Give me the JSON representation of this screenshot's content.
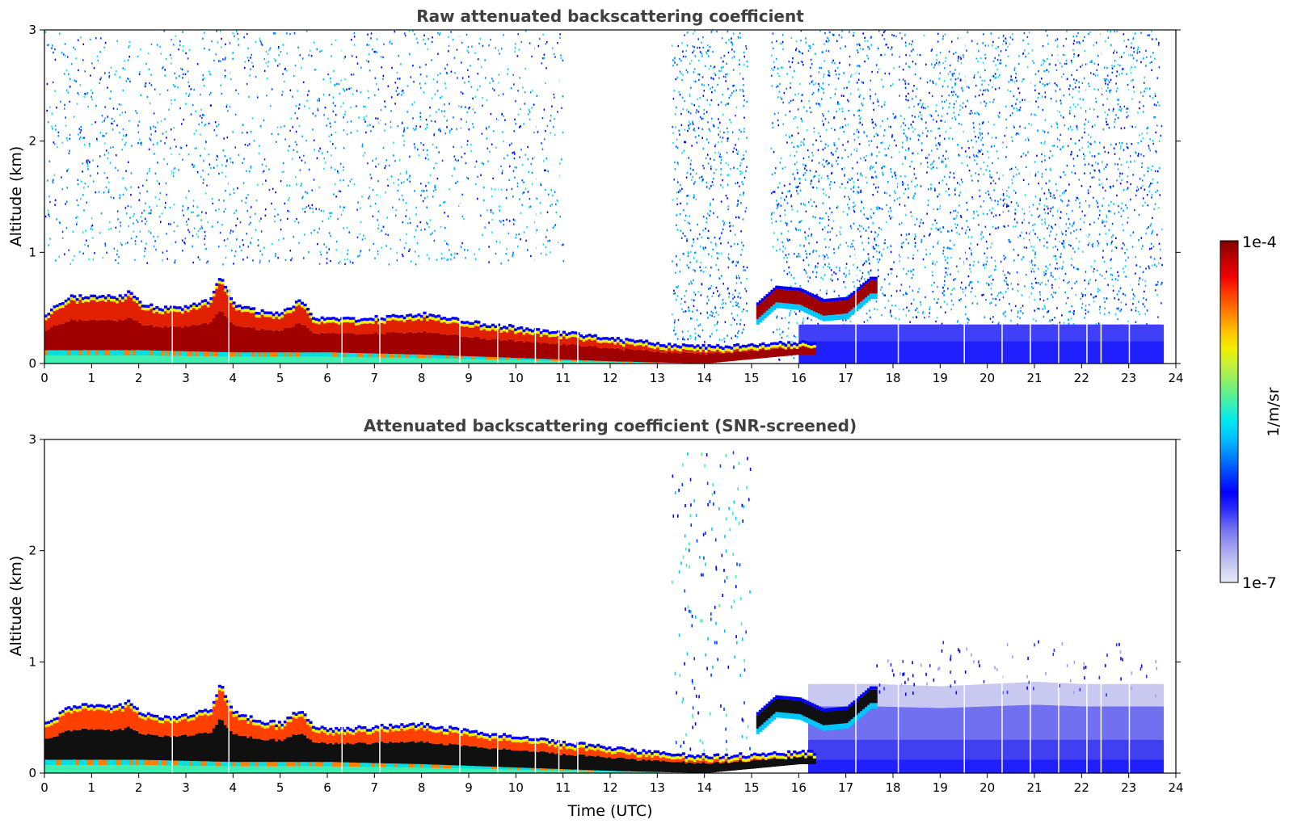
{
  "chart_data": [
    {
      "type": "heatmap",
      "title": "Raw attenuated backscattering coefficient",
      "xlabel": "",
      "ylabel": "Altitude (km)",
      "xlim": [
        0,
        24
      ],
      "ylim": [
        0,
        3
      ],
      "xticks": [
        "0",
        "1",
        "2",
        "3",
        "4",
        "5",
        "6",
        "7",
        "8",
        "9",
        "10",
        "11",
        "12",
        "13",
        "14",
        "15",
        "16",
        "17",
        "18",
        "19",
        "20",
        "21",
        "22",
        "23",
        "24"
      ],
      "yticks": [
        "0",
        "1",
        "2",
        "3"
      ],
      "layer_top_km": [
        [
          0,
          0.45
        ],
        [
          0.5,
          0.6
        ],
        [
          1,
          0.62
        ],
        [
          1.5,
          0.6
        ],
        [
          1.8,
          0.65
        ],
        [
          2,
          0.55
        ],
        [
          2.5,
          0.5
        ],
        [
          3,
          0.52
        ],
        [
          3.5,
          0.58
        ],
        [
          3.7,
          0.8
        ],
        [
          4,
          0.55
        ],
        [
          4.5,
          0.48
        ],
        [
          5,
          0.45
        ],
        [
          5.4,
          0.58
        ],
        [
          5.7,
          0.42
        ],
        [
          6,
          0.4
        ],
        [
          7,
          0.42
        ],
        [
          8,
          0.45
        ],
        [
          9,
          0.38
        ],
        [
          10,
          0.33
        ],
        [
          11,
          0.28
        ],
        [
          12,
          0.23
        ],
        [
          13,
          0.19
        ],
        [
          13.5,
          0.17
        ],
        [
          14,
          0.16
        ],
        [
          15,
          0.17
        ],
        [
          16,
          0.2
        ]
      ],
      "layer_base_km": [
        [
          0,
          0.12
        ],
        [
          2,
          0.12
        ],
        [
          4,
          0.1
        ],
        [
          6,
          0.1
        ],
        [
          8,
          0.08
        ],
        [
          10,
          0.05
        ],
        [
          12,
          0.02
        ],
        [
          14,
          0.0
        ],
        [
          16,
          0.08
        ]
      ],
      "elevated_layer_km": [
        [
          15.1,
          0.55
        ],
        [
          15.5,
          0.7
        ],
        [
          16,
          0.68
        ],
        [
          16.5,
          0.58
        ],
        [
          17,
          0.6
        ],
        [
          17.5,
          0.78
        ]
      ],
      "noise_zones": [
        {
          "x0": 0,
          "x1": 11,
          "y_min": 0.9,
          "y_max": 3,
          "level": "medium"
        },
        {
          "x0": 13.3,
          "x1": 14.9,
          "y_min": 0.2,
          "y_max": 3,
          "level": "dense"
        },
        {
          "x0": 15.4,
          "x1": 23.7,
          "y_min": 0.0,
          "y_max": 3,
          "level": "dense"
        }
      ]
    },
    {
      "type": "heatmap",
      "title": "Attenuated backscattering coefficient (SNR-screened)",
      "xlabel": "Time (UTC)",
      "ylabel": "Altitude (km)",
      "xlim": [
        0,
        24
      ],
      "ylim": [
        0,
        3
      ],
      "xticks": [
        "0",
        "1",
        "2",
        "3",
        "4",
        "5",
        "6",
        "7",
        "8",
        "9",
        "10",
        "11",
        "12",
        "13",
        "14",
        "15",
        "16",
        "17",
        "18",
        "19",
        "20",
        "21",
        "22",
        "23",
        "24"
      ],
      "yticks": [
        "0",
        "1",
        "2",
        "3"
      ],
      "screened_mixed_layer_top_km": [
        [
          17.6,
          0.8
        ],
        [
          19,
          0.78
        ],
        [
          20,
          0.8
        ],
        [
          21,
          0.82
        ],
        [
          22,
          0.8
        ],
        [
          23.7,
          0.8
        ]
      ]
    }
  ],
  "colorbar": {
    "label": "1/m/sr",
    "max_label": "1e-4",
    "min_label": "1e-7",
    "colors": [
      "#e8e8f8",
      "#c8c8f0",
      "#a0a0f0",
      "#7070f0",
      "#3030f8",
      "#0000ff",
      "#0040ff",
      "#0080ff",
      "#00c0ff",
      "#00e8f0",
      "#40f0b0",
      "#80f070",
      "#c0f040",
      "#f0f000",
      "#ffc000",
      "#ff8000",
      "#ff4000",
      "#f00000",
      "#c00000",
      "#800000"
    ]
  }
}
